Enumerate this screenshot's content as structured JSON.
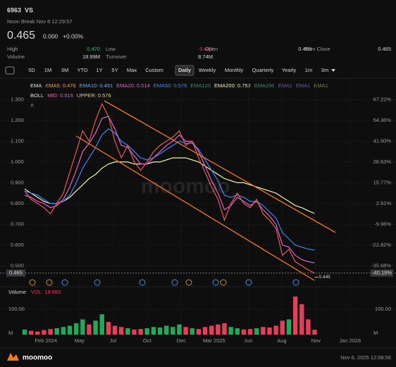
{
  "header": {
    "symbol": "6963",
    "name": "VS",
    "status": "Noon Break Nov 6 12:29:57",
    "price": "0.465",
    "change": "0.000",
    "change_pct": "+0.00%"
  },
  "quote": [
    {
      "label": "High",
      "value": "0.470"
    },
    {
      "label": "Low",
      "value": "0.445"
    },
    {
      "label": "Open",
      "value": "0.465"
    },
    {
      "label": "Prev Close",
      "value": "0.465"
    },
    {
      "label": "Volume",
      "value": "18.99M"
    },
    {
      "label": "Turnover",
      "value": "8.74M"
    }
  ],
  "toolbar": {
    "ranges": [
      "5D",
      "1M",
      "3M",
      "YTD",
      "1Y",
      "5Y",
      "Max",
      "Custom"
    ],
    "intervals": [
      "Daily",
      "Weekly",
      "Monthly",
      "Quarterly",
      "Yearly",
      "1m",
      "3m"
    ],
    "selected_interval": 0
  },
  "indicators": {
    "ema_legend": [
      {
        "text": "EMA",
        "color": "#e6e6e6"
      },
      {
        "text": "EMA5: 0.476",
        "color": "#f0a43a"
      },
      {
        "text": "EMA10: 0.491",
        "color": "#5fb0f5"
      },
      {
        "text": "EMA20: 0.514",
        "color": "#e064c8"
      },
      {
        "text": "EMA50: 0.576",
        "color": "#3f86f0"
      },
      {
        "text": "EMA120",
        "color": "#2f8f7f"
      },
      {
        "text": "EMA200: 0.752",
        "color": "#f2f2a6"
      },
      {
        "text": "EMA250",
        "color": "#2f8f6f"
      },
      {
        "text": "EMA1",
        "color": "#6b5aa8"
      },
      {
        "text": "EMA1",
        "color": "#6b5aa8"
      },
      {
        "text": "EMA1",
        "color": "#8a7a30"
      }
    ],
    "boll_legend": [
      {
        "text": "BOLL",
        "color": "#e6e6e6"
      },
      {
        "text": "MID: 0.516",
        "color": "#e064c8"
      },
      {
        "text": "UPPER: 0.576",
        "color": "#f0d84a"
      }
    ]
  },
  "chart_data": [
    {
      "type": "line",
      "xlim": [
        0,
        55
      ],
      "xticks": [
        {
          "value": 3.3,
          "label": "Feb 2024"
        },
        {
          "value": 8.5,
          "label": "May"
        },
        {
          "value": 13.7,
          "label": "Jul"
        },
        {
          "value": 19.0,
          "label": "Oct"
        },
        {
          "value": 24.3,
          "label": "Dec"
        },
        {
          "value": 29.4,
          "label": "Mar 2025"
        },
        {
          "value": 34.7,
          "label": "Jun"
        },
        {
          "value": 39.9,
          "label": "Aug"
        },
        {
          "value": 45.2,
          "label": "Nov"
        },
        {
          "value": 50.5,
          "label": "Jan 2026"
        }
      ],
      "ylim": [
        0.44,
        1.39
      ],
      "yticks": [
        {
          "value": 1.3,
          "label": "1.300"
        },
        {
          "value": 1.2,
          "label": "1.200"
        },
        {
          "value": 1.1,
          "label": "1.100"
        },
        {
          "value": 1.0,
          "label": "1.000"
        },
        {
          "value": 0.9,
          "label": "0.900"
        },
        {
          "value": 0.8,
          "label": "0.800"
        },
        {
          "value": 0.7,
          "label": "0.700"
        },
        {
          "value": 0.6,
          "label": "0.600"
        },
        {
          "value": 0.5,
          "label": "0.500"
        }
      ],
      "y2lim": [
        -43.41,
        78.78
      ],
      "y2ticks": [
        {
          "value": 67.22,
          "label": "67.22%"
        },
        {
          "value": 54.36,
          "label": "54.36%"
        },
        {
          "value": 41.5,
          "label": "41.50%"
        },
        {
          "value": 28.63,
          "label": "28.63%"
        },
        {
          "value": 15.77,
          "label": "15.77%"
        },
        {
          "value": 2.91,
          "label": "2.91%"
        },
        {
          "value": -9.96,
          "label": "-9.96%"
        },
        {
          "value": -22.82,
          "label": "-22.82%"
        },
        {
          "value": -35.68,
          "label": "-35.68%"
        }
      ],
      "grid": true,
      "last_price": {
        "value": 0.465,
        "label": "0.465"
      },
      "last_pct": {
        "value": -40.19,
        "label": "-40.19%"
      },
      "low_marker": {
        "x": 45,
        "value": 0.445,
        "label": "0.445"
      },
      "series": [
        {
          "color": "#f2f2a6",
          "values": [
            0.87,
            0.85,
            0.83,
            0.81,
            0.8,
            0.8,
            0.81,
            0.83,
            0.86,
            0.89,
            0.92,
            0.94,
            0.97,
            0.99,
            1.0,
            1.0,
            1.0,
            0.99,
            0.99,
            0.99,
            1.0,
            1.0,
            1.01,
            1.02,
            1.02,
            1.02,
            1.01,
            1.0,
            0.98,
            0.96,
            0.94,
            0.92,
            0.91,
            0.9,
            0.9,
            0.89,
            0.88,
            0.87,
            0.86,
            0.85,
            0.83,
            0.81,
            0.79,
            0.78,
            0.765,
            0.752
          ]
        },
        {
          "color": "#3f86f0",
          "values": [
            0.86,
            0.85,
            0.84,
            0.82,
            0.8,
            0.8,
            0.81,
            0.84,
            0.9,
            0.97,
            1.02,
            1.07,
            1.13,
            1.16,
            1.14,
            1.1,
            1.08,
            1.05,
            1.02,
            1.01,
            1.02,
            1.04,
            1.06,
            1.08,
            1.1,
            1.09,
            1.09,
            1.06,
            1.01,
            0.96,
            0.91,
            0.84,
            0.83,
            0.84,
            0.83,
            0.81,
            0.81,
            0.79,
            0.76,
            0.73,
            0.66,
            0.63,
            0.6,
            0.59,
            0.58,
            0.576
          ]
        },
        {
          "color": "#e064c8",
          "values": [
            0.84,
            0.83,
            0.81,
            0.8,
            0.78,
            0.79,
            0.82,
            0.88,
            0.96,
            1.05,
            1.09,
            1.14,
            1.21,
            1.22,
            1.16,
            1.08,
            1.07,
            1.03,
            0.99,
            0.99,
            1.02,
            1.05,
            1.08,
            1.1,
            1.13,
            1.1,
            1.1,
            1.05,
            0.98,
            0.91,
            0.85,
            0.77,
            0.79,
            0.83,
            0.81,
            0.79,
            0.81,
            0.77,
            0.74,
            0.7,
            0.6,
            0.59,
            0.55,
            0.53,
            0.52,
            0.514
          ]
        },
        {
          "color": "#e85a5a",
          "values": [
            0.86,
            0.82,
            0.8,
            0.78,
            0.75,
            0.8,
            0.85,
            0.95,
            1.05,
            1.15,
            1.1,
            1.2,
            1.28,
            1.22,
            1.1,
            1.02,
            1.08,
            1.0,
            0.96,
            1.0,
            1.05,
            1.08,
            1.1,
            1.12,
            1.15,
            1.08,
            1.1,
            1.02,
            0.95,
            0.88,
            0.82,
            0.72,
            0.8,
            0.85,
            0.8,
            0.78,
            0.82,
            0.75,
            0.72,
            0.68,
            0.55,
            0.58,
            0.52,
            0.5,
            0.48,
            0.465
          ]
        }
      ]
    },
    {
      "type": "bar",
      "title": "Volume",
      "subtitle": "VOL: 18.993",
      "unit": "M",
      "ylim": [
        0,
        150
      ],
      "yticks": [
        {
          "value": 100,
          "label": "100.00"
        }
      ],
      "up_color": "#26a65b",
      "down_color": "#e0405a",
      "values": [
        20,
        15,
        12,
        18,
        22,
        25,
        30,
        35,
        45,
        60,
        40,
        55,
        80,
        50,
        35,
        30,
        25,
        20,
        22,
        25,
        30,
        28,
        35,
        30,
        40,
        30,
        25,
        22,
        30,
        35,
        40,
        45,
        30,
        25,
        20,
        22,
        25,
        30,
        28,
        35,
        55,
        60,
        150,
        120,
        60,
        18.993
      ]
    }
  ],
  "footer": {
    "brand": "moomoo",
    "timestamp": "Nov 6, 2025 12:58:56"
  }
}
